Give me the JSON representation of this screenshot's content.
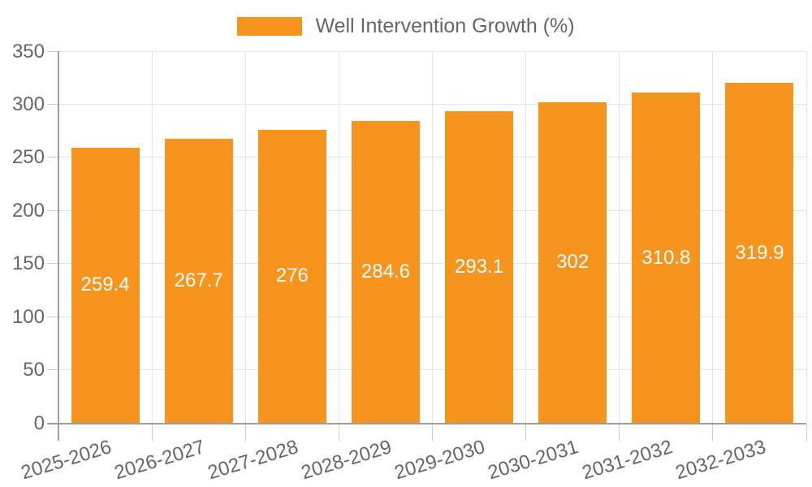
{
  "chart_data": {
    "type": "bar",
    "title": "",
    "legend_position": "top",
    "categories": [
      "2025-2026",
      "2026-2027",
      "2027-2028",
      "2028-2029",
      "2029-2030",
      "2030-2031",
      "2031-2032",
      "2032-2033"
    ],
    "series": [
      {
        "name": "Well Intervention Growth (%)",
        "values": [
          259.4,
          267.7,
          276,
          284.6,
          293.1,
          302,
          310.8,
          319.9
        ],
        "labels": [
          "259.4",
          "267.7",
          "276",
          "284.6",
          "293.1",
          "302",
          "310.8",
          "319.9"
        ],
        "color": "#F7941E"
      }
    ],
    "ylim": [
      0,
      350
    ],
    "ytick_step": 50,
    "ytick_labels": [
      "0",
      "50",
      "100",
      "150",
      "200",
      "250",
      "300",
      "350"
    ],
    "grid": true,
    "value_label_position": "inside-center",
    "colors": {
      "bar": "#F7941E",
      "axis_line": "#9E9E9E",
      "gridline": "#E4E4E4",
      "tick": "#CDCDCD",
      "axis_label": "#666666",
      "legend_label": "#666666",
      "value_label": "#FFFFFF",
      "background": "#FFFFFF"
    }
  }
}
